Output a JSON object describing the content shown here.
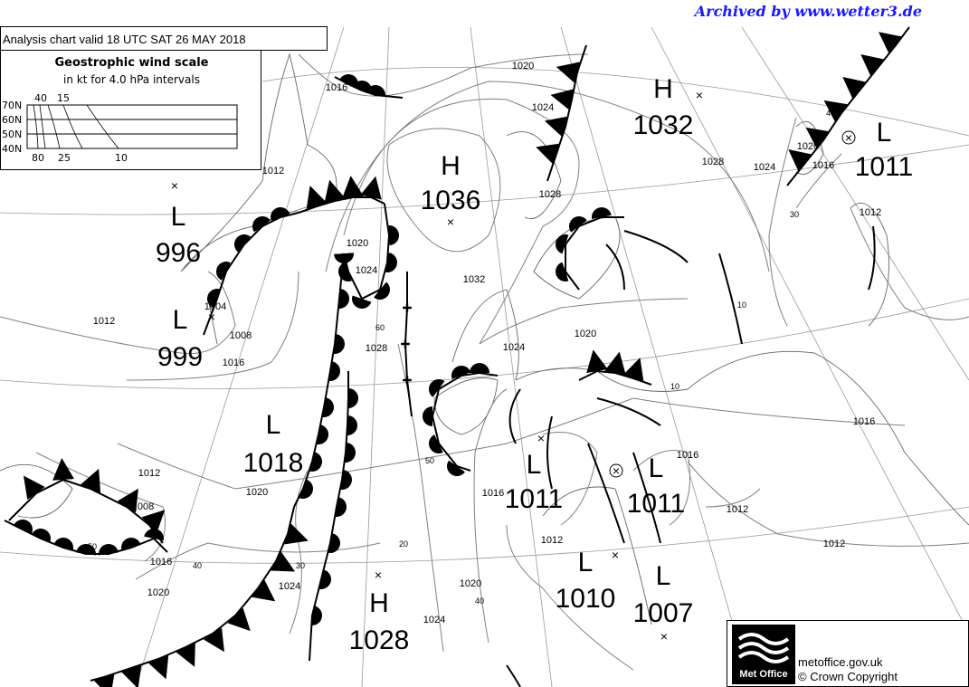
{
  "header": {
    "archive_credit": "Archived by www.wetter3.de",
    "chart_title": "Analysis chart  valid 18 UTC SAT 26  MAY 2018"
  },
  "wind_scale": {
    "title": "Geostrophic wind scale",
    "subtitle": "in kt for 4.0 hPa intervals",
    "latitudes": [
      "70N",
      "60N",
      "50N",
      "40N"
    ],
    "top_labels": [
      "40",
      "15"
    ],
    "bottom_labels": [
      "80",
      "25",
      "10"
    ]
  },
  "pressure_systems": [
    {
      "type": "H",
      "value": "1032"
    },
    {
      "type": "L",
      "value": "1011"
    },
    {
      "type": "H",
      "value": "1036"
    },
    {
      "type": "L",
      "value": "996"
    },
    {
      "type": "L",
      "value": "999"
    },
    {
      "type": "L",
      "value": "1018"
    },
    {
      "type": "L",
      "value": "1011"
    },
    {
      "type": "L",
      "value": "1011"
    },
    {
      "type": "L",
      "value": "1010"
    },
    {
      "type": "L",
      "value": "1007"
    },
    {
      "type": "H",
      "value": "1028"
    }
  ],
  "isobar_labels": [
    "1020",
    "1016",
    "1024",
    "1028",
    "1024",
    "1020",
    "1016",
    "1012",
    "1028",
    "1032",
    "1028",
    "1024",
    "1020",
    "1012",
    "1016",
    "1008",
    "1004",
    "1024",
    "1020",
    "1016",
    "1016",
    "1012",
    "1012",
    "1012",
    "1020",
    "1008",
    "1016",
    "1020",
    "1024",
    "1024",
    "1020",
    "1012",
    "1016",
    "1012"
  ],
  "wind_labels": [
    "40",
    "30",
    "10",
    "60",
    "50",
    "20",
    "30",
    "40",
    "40",
    "50",
    "10"
  ],
  "footer": {
    "logo_text": "Met Office",
    "website": "metoffice.gov.uk",
    "copyright": "© Crown Copyright"
  },
  "colors": {
    "archive_credit": "#1a1aff",
    "isobar": "#808080",
    "front": "#000000"
  }
}
